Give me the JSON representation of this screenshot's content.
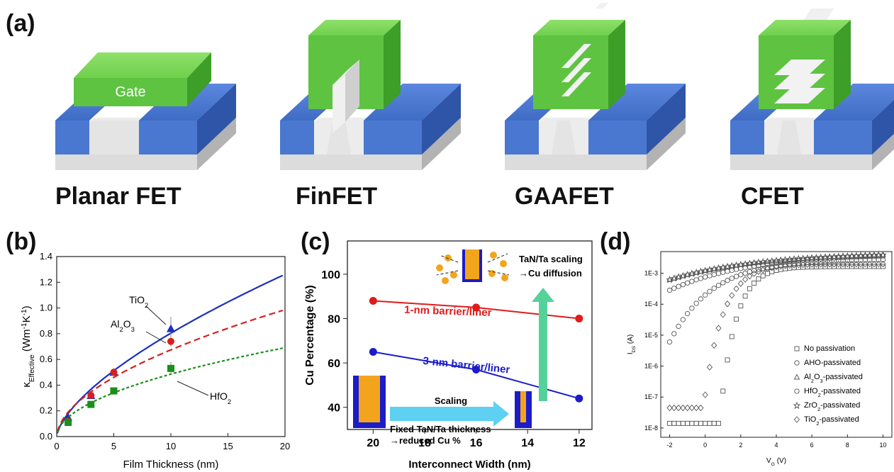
{
  "panel_labels": {
    "a": "(a)",
    "b": "(b)",
    "c": "(c)",
    "d": "(d)"
  },
  "devices": [
    {
      "name": "Planar FET",
      "gate_label": "Gate"
    },
    {
      "name": "FinFET"
    },
    {
      "name": "GAAFET"
    },
    {
      "name": "CFET"
    }
  ],
  "colors": {
    "gate": "#5ec341",
    "substrate": "#4a78d0",
    "channel": "#e4e4e4"
  },
  "chart_data": [
    {
      "type": "line",
      "xlabel": "Film Thickness (nm)",
      "ylabel_main": "κ",
      "ylabel_sub": "Effective",
      "ylabel_unit": " (Wm",
      "ylabel_unit2": "K",
      "ylabel_close": ")",
      "xlim": [
        0,
        20
      ],
      "ylim": [
        0,
        1.4
      ],
      "xticks": [
        0,
        5,
        10,
        15,
        20
      ],
      "yticks": [
        0.0,
        0.2,
        0.4,
        0.6,
        0.8,
        1.0,
        1.2,
        1.4
      ],
      "ytick_labels": [
        "0.0",
        "0.2",
        "0.4",
        "0.6",
        "0.8",
        "1.0",
        "1.2",
        "1.4"
      ],
      "series": [
        {
          "name": "TiO",
          "sub": "2",
          "color": "#1a2fbf",
          "style": "solid",
          "marker": "triangle",
          "x": [
            1,
            3,
            5,
            10
          ],
          "y": [
            0.15,
            0.32,
            0.5,
            0.84
          ],
          "err": [
            0.02,
            0.02,
            0.02,
            0.09
          ],
          "fit": {
            "a": 0.18,
            "b": 0.65,
            "x0": 0
          }
        },
        {
          "name": "Al",
          "sub": "2",
          "name2": "O",
          "sub2": "3",
          "color": "#d62020",
          "style": "dash",
          "marker": "circle",
          "x": [
            1,
            3,
            5,
            10
          ],
          "y": [
            0.12,
            0.32,
            0.5,
            0.74
          ],
          "err": [
            0.02,
            0.02,
            0.02,
            0.04
          ],
          "fit": {
            "a": 0.19,
            "b": 0.55,
            "x0": 0
          }
        },
        {
          "name": "HfO",
          "sub": "2",
          "color": "#1a8f1a",
          "style": "dot",
          "marker": "square",
          "x": [
            1,
            3,
            5,
            10
          ],
          "y": [
            0.11,
            0.25,
            0.355,
            0.53
          ],
          "err": [
            0.02,
            0.02,
            0.02,
            0.05
          ],
          "fit": {
            "a": 0.15,
            "b": 0.51,
            "x0": 0
          }
        }
      ]
    },
    {
      "type": "line",
      "xlabel": "Interconnect Width (nm)",
      "ylabel": "Cu Percentage (%)",
      "xlim": [
        21,
        11.5
      ],
      "ylim": [
        30,
        115
      ],
      "xticks": [
        20,
        18,
        16,
        14,
        12
      ],
      "yticks": [
        40,
        60,
        80,
        100
      ],
      "series": [
        {
          "name": "1-nm barrier/liner",
          "color": "#e01b1b",
          "x": [
            20,
            16,
            12
          ],
          "y": [
            88,
            85,
            80
          ]
        },
        {
          "name": "3-nm barrier/liner",
          "color": "#1c1cc8",
          "x": [
            20,
            16,
            12
          ],
          "y": [
            65,
            57,
            44
          ]
        }
      ],
      "annotations": {
        "scaling": "Scaling",
        "fixed_line1": "Fixed TaN/Ta thickness",
        "fixed_line2": "→reduced Cu %",
        "diffusion_line1": "TaN/Ta scaling",
        "diffusion_line2": "→Cu diffusion"
      }
    },
    {
      "type": "scatter",
      "xlabel_main": "V",
      "xlabel_sub": "G",
      "xlabel_unit": " (V)",
      "ylabel_main": "I",
      "ylabel_sub": "DS",
      "ylabel_unit": " (A)",
      "xlim": [
        -2.5,
        10.5
      ],
      "ylim_log10": [
        -8.3,
        -2.3
      ],
      "xticks": [
        -2,
        0,
        2,
        4,
        6,
        8,
        10
      ],
      "xtick_labels": [
        "-2",
        "0",
        "2",
        "4",
        "6",
        "8",
        "10"
      ],
      "yticks_log10": [
        -8,
        -7,
        -6,
        -5,
        -4,
        -3
      ],
      "ytick_labels": [
        "1E-8",
        "1E-7",
        "1E-6",
        "1E-5",
        "1E-4",
        "1E-3"
      ],
      "series": [
        {
          "name": "No passivation",
          "marker": "square",
          "off_log": -7.85,
          "on_log": -2.78,
          "vth": 0.8,
          "k": 1.15
        },
        {
          "name": "AHO-passivated",
          "marker": "circle",
          "off_log": -3.55,
          "on_log": -2.35,
          "vth": -2.0,
          "k": 0.22
        },
        {
          "name": "Al",
          "sub": "2",
          "name2": "O",
          "sub2": "3",
          "name3": "-passivated",
          "marker": "triangle",
          "off_log": -3.2,
          "on_log": -2.32,
          "vth": -2.0,
          "k": 0.2
        },
        {
          "name": "HfO",
          "sub": "2",
          "name3": "-passivated",
          "marker": "circle",
          "off_log": -5.22,
          "on_log": -2.55,
          "vth": -2.0,
          "k": 0.42
        },
        {
          "name": "ZrO",
          "sub": "2",
          "name3": "-passivated",
          "marker": "star",
          "off_log": -3.2,
          "on_log": -2.32,
          "vth": -2.0,
          "k": 0.2
        },
        {
          "name": "TiO",
          "sub": "2",
          "name3": "-passivated",
          "marker": "diamond",
          "off_log": -7.35,
          "on_log": -2.7,
          "vth": -0.1,
          "k": 0.95
        }
      ]
    }
  ]
}
